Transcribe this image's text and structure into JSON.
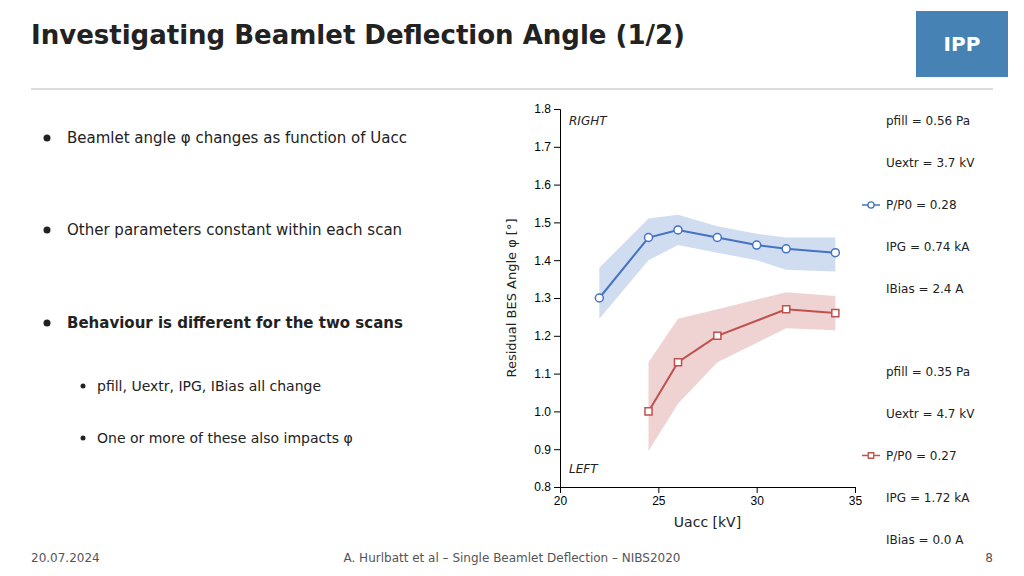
{
  "chart_data": {
    "type": "line",
    "title": "Investigating Beamlet Deflection Angle (1/2)",
    "x_label": "Uacc [kV]",
    "y_label": "Residual BES Angle φ [°]",
    "xlim": [
      20,
      35
    ],
    "ylim": [
      0.8,
      1.8
    ],
    "xticks": [
      20,
      25,
      30,
      35
    ],
    "yticks": [
      0.8,
      0.9,
      {
        "value": 1.0,
        "label": "1.0"
      },
      1.1,
      1.2,
      1.3,
      1.4,
      1.5,
      1.6,
      1.7,
      1.8
    ],
    "grid": false,
    "series": [
      {
        "color": "#4472C4",
        "marker": "circle",
        "line_style": "solid",
        "x": [
          22,
          24.5,
          26,
          28,
          30,
          31.5,
          34
        ],
        "values": [
          1.3,
          1.46,
          1.48,
          1.46,
          1.44,
          1.43,
          1.42
        ],
        "upper": [
          1.38,
          1.51,
          1.52,
          1.49,
          1.47,
          1.46,
          1.46
        ],
        "lower": [
          1.245,
          1.4,
          1.44,
          1.42,
          1.4,
          1.375,
          1.37
        ]
      },
      {
        "color": "#C0504D",
        "marker": "square",
        "line_style": "solid",
        "x": [
          24.5,
          26,
          28,
          31.5,
          34
        ],
        "values": [
          1.0,
          1.13,
          1.2,
          1.27,
          1.26
        ],
        "upper": [
          1.13,
          1.245,
          1.27,
          1.315,
          1.305
        ],
        "lower": [
          0.895,
          1.02,
          1.13,
          1.22,
          1.215
        ]
      }
    ],
    "annotations": [
      {
        "text": "Beamlet angle φ changes as function of Uacc"
      },
      {
        "text": "Other parameters constant within each scan"
      },
      {
        "text": "Behaviour is different for the two scans"
      },
      {
        "text": "pfill, Uextr, IPG, IBias all change"
      },
      {
        "text": "One or more of these also impacts φ"
      },
      {
        "text": "RIGHT"
      },
      {
        "text": "LEFT"
      },
      {
        "text": "pfill = 0.56 Pa"
      },
      {
        "text": "Uextr = 3.7 kV"
      },
      {
        "text": "P/P0 = 0.28",
        "series": 0
      },
      {
        "text": "IPG = 0.74 kA"
      },
      {
        "text": "IBias = 2.4 A"
      },
      {
        "text": "pfill = 0.35 Pa"
      },
      {
        "text": "Uextr = 4.7 kV"
      },
      {
        "text": "P/P0 = 0.27",
        "series": 1
      },
      {
        "text": "IPG = 1.72 kA"
      },
      {
        "text": "IBias = 0.0 A"
      },
      {
        "text": "IPP"
      },
      {
        "text": "20.07.2024"
      },
      {
        "text": "A. Hurlbatt et al – Single Beamlet Deflection – NIBS2020"
      },
      {
        "text": "8"
      }
    ]
  }
}
